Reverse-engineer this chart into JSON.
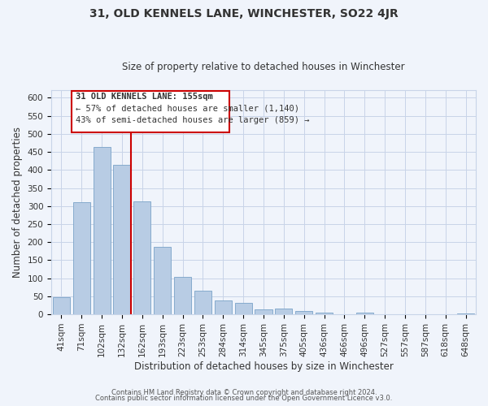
{
  "title": "31, OLD KENNELS LANE, WINCHESTER, SO22 4JR",
  "subtitle": "Size of property relative to detached houses in Winchester",
  "xlabel": "Distribution of detached houses by size in Winchester",
  "ylabel": "Number of detached properties",
  "bar_labels": [
    "41sqm",
    "71sqm",
    "102sqm",
    "132sqm",
    "162sqm",
    "193sqm",
    "223sqm",
    "253sqm",
    "284sqm",
    "314sqm",
    "345sqm",
    "375sqm",
    "405sqm",
    "436sqm",
    "466sqm",
    "496sqm",
    "527sqm",
    "557sqm",
    "587sqm",
    "618sqm",
    "648sqm"
  ],
  "bar_values": [
    48,
    311,
    463,
    414,
    313,
    188,
    104,
    65,
    38,
    32,
    14,
    15,
    10,
    4,
    0,
    5,
    0,
    0,
    0,
    0,
    2
  ],
  "bar_color": "#b8cce4",
  "bar_edge_color": "#7aa3c8",
  "vline_color": "#cc0000",
  "ylim": [
    0,
    620
  ],
  "yticks": [
    0,
    50,
    100,
    150,
    200,
    250,
    300,
    350,
    400,
    450,
    500,
    550,
    600
  ],
  "annotation_title": "31 OLD KENNELS LANE: 155sqm",
  "annotation_line1": "← 57% of detached houses are smaller (1,140)",
  "annotation_line2": "43% of semi-detached houses are larger (859) →",
  "footer1": "Contains HM Land Registry data © Crown copyright and database right 2024.",
  "footer2": "Contains public sector information licensed under the Open Government Licence v3.0.",
  "background_color": "#f0f4fb",
  "grid_color": "#c8d4e8",
  "title_fontsize": 10,
  "subtitle_fontsize": 8.5,
  "xlabel_fontsize": 8.5,
  "ylabel_fontsize": 8.5,
  "tick_fontsize": 7.5,
  "footer_fontsize": 6.0
}
